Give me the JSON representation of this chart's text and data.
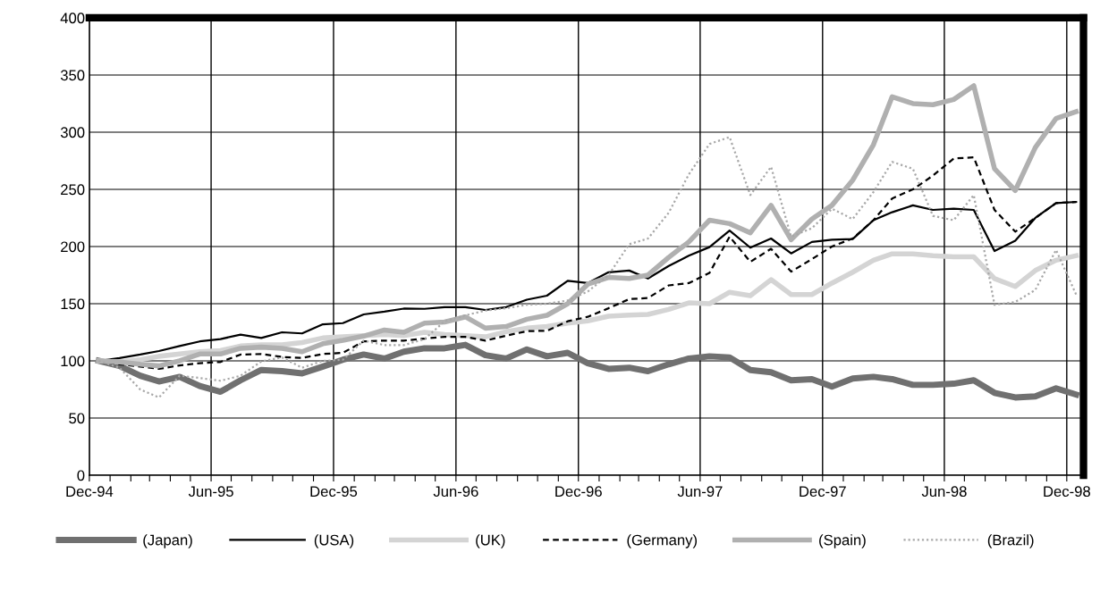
{
  "chart_data": {
    "type": "line",
    "x": [
      "1994-12-15",
      "1995-01-15",
      "1995-02-15",
      "1995-03-15",
      "1995-04-15",
      "1995-05-15",
      "1995-06-15",
      "1995-07-15",
      "1995-08-15",
      "1995-09-15",
      "1995-10-15",
      "1995-11-15",
      "1995-12-15",
      "1996-01-15",
      "1996-02-15",
      "1996-03-15",
      "1996-04-15",
      "1996-05-15",
      "1996-06-15",
      "1996-07-15",
      "1996-08-15",
      "1996-09-15",
      "1996-10-15",
      "1996-11-15",
      "1996-12-15",
      "1997-01-15",
      "1997-02-15",
      "1997-03-15",
      "1997-04-15",
      "1997-05-15",
      "1997-06-15",
      "1997-07-15",
      "1997-08-15",
      "1997-09-15",
      "1997-10-15",
      "1997-11-15",
      "1997-12-15",
      "1998-01-15",
      "1998-02-15",
      "1998-03-15",
      "1998-04-15",
      "1998-05-15",
      "1998-06-15",
      "1998-07-15",
      "1998-08-15",
      "1998-09-15",
      "1998-10-15",
      "1998-11-15",
      "1998-12-15"
    ],
    "series": [
      {
        "name": "(Japan)",
        "color": "#707070",
        "line_style": "solid",
        "values": [
          100,
          95.6,
          87,
          82,
          86,
          78,
          73,
          83,
          92,
          91,
          89,
          95,
          101,
          105.5,
          102,
          108,
          111,
          111,
          114,
          105,
          102,
          110,
          104,
          107,
          98,
          93,
          94,
          91,
          97,
          102,
          104,
          103,
          92,
          90,
          83,
          84,
          77.5,
          84.5,
          86,
          84,
          79,
          79,
          80,
          83,
          72,
          68,
          69,
          76,
          70.5
        ]
      },
      {
        "name": "(USA)",
        "color": "#000000",
        "line_style": "solid",
        "values": [
          100,
          102.5,
          105.5,
          108.6,
          113,
          117,
          119,
          123,
          120,
          125,
          124,
          132,
          133,
          140.6,
          143,
          145.7,
          145.5,
          147,
          147,
          144.5,
          147,
          153.5,
          157,
          170,
          168,
          177.5,
          179,
          172,
          183,
          192,
          199.5,
          214,
          199,
          207,
          194,
          204,
          206,
          206.5,
          223,
          230,
          236,
          232,
          233,
          232,
          196,
          205,
          225,
          238,
          239
        ]
      },
      {
        "name": "(UK)",
        "color": "#d4d4d4",
        "line_style": "solid",
        "values": [
          100,
          99,
          101,
          104,
          106,
          108,
          109,
          113,
          114,
          114,
          116,
          120,
          121,
          122,
          123,
          122,
          125,
          123,
          122,
          121,
          125.5,
          128.6,
          130,
          133,
          135,
          139,
          140,
          140.6,
          145,
          150.7,
          150,
          160,
          157,
          171,
          158,
          158,
          168,
          177.5,
          188,
          193.6,
          193.6,
          192,
          191,
          191,
          172,
          165,
          179,
          188,
          192
        ]
      },
      {
        "name": "(Germany)",
        "color": "#000000",
        "line_style": "dashed",
        "values": [
          100,
          97,
          95,
          93,
          96,
          98,
          99,
          105.5,
          106,
          103.4,
          102.6,
          106,
          107,
          117,
          117.7,
          117.7,
          119.5,
          121,
          121,
          117.7,
          122,
          126,
          126.3,
          134.6,
          138.5,
          146,
          154,
          155,
          166,
          168,
          177,
          208.6,
          186.6,
          198,
          178,
          189,
          200,
          207,
          223,
          242,
          250,
          262,
          277,
          278,
          232,
          213,
          225,
          238,
          239
        ]
      },
      {
        "name": "(Spain)",
        "color": "#b0b0b0",
        "line_style": "solid",
        "values": [
          100,
          99,
          97,
          95.6,
          100,
          106,
          106,
          111,
          112,
          111,
          108,
          115,
          118,
          121.6,
          127,
          125,
          133,
          134,
          138.5,
          128.6,
          130,
          136.4,
          139.8,
          150,
          167,
          173,
          172,
          175,
          190.5,
          204,
          223,
          220,
          212,
          236,
          206,
          224,
          236,
          258,
          289,
          331,
          325,
          324,
          328.6,
          340.6,
          268,
          249,
          286.6,
          312,
          318
        ]
      },
      {
        "name": "(Brazil)",
        "color": "#a8a8a8",
        "line_style": "dotted",
        "values": [
          100,
          94,
          75,
          68,
          87,
          85,
          82.6,
          87,
          99.5,
          103,
          94,
          100,
          101,
          117.7,
          113.8,
          113.8,
          119,
          134.6,
          139.8,
          144,
          146,
          149,
          150,
          152.8,
          160.6,
          175,
          202,
          207,
          229.5,
          263,
          289.7,
          295.7,
          245,
          269.7,
          208.6,
          216,
          233,
          224,
          247.6,
          274,
          268,
          226.8,
          223,
          245,
          149,
          151.5,
          162,
          197,
          158
        ]
      }
    ],
    "xlim": [
      "1994-12-01",
      "1998-12-26"
    ],
    "xticks": [
      {
        "value": "1994-12-01",
        "label": "Dec-94"
      },
      {
        "value": "1995-01-01",
        "label": null
      },
      {
        "value": "1995-02-01",
        "label": null
      },
      {
        "value": "1995-03-01",
        "label": null
      },
      {
        "value": "1995-04-01",
        "label": null
      },
      {
        "value": "1995-05-01",
        "label": null
      },
      {
        "value": "1995-06-01",
        "label": "Jun-95"
      },
      {
        "value": "1995-07-01",
        "label": null
      },
      {
        "value": "1995-08-01",
        "label": null
      },
      {
        "value": "1995-09-01",
        "label": null
      },
      {
        "value": "1995-10-01",
        "label": null
      },
      {
        "value": "1995-11-01",
        "label": null
      },
      {
        "value": "1995-12-01",
        "label": "Dec-95"
      },
      {
        "value": "1996-01-01",
        "label": null
      },
      {
        "value": "1996-02-01",
        "label": null
      },
      {
        "value": "1996-03-01",
        "label": null
      },
      {
        "value": "1996-04-01",
        "label": null
      },
      {
        "value": "1996-05-01",
        "label": null
      },
      {
        "value": "1996-06-01",
        "label": "Jun-96"
      },
      {
        "value": "1996-07-01",
        "label": null
      },
      {
        "value": "1996-08-01",
        "label": null
      },
      {
        "value": "1996-09-01",
        "label": null
      },
      {
        "value": "1996-10-01",
        "label": null
      },
      {
        "value": "1996-11-01",
        "label": null
      },
      {
        "value": "1996-12-01",
        "label": "Dec-96"
      },
      {
        "value": "1997-01-01",
        "label": null
      },
      {
        "value": "1997-02-01",
        "label": null
      },
      {
        "value": "1997-03-01",
        "label": null
      },
      {
        "value": "1997-04-01",
        "label": null
      },
      {
        "value": "1997-05-01",
        "label": null
      },
      {
        "value": "1997-06-01",
        "label": "Jun-97"
      },
      {
        "value": "1997-07-01",
        "label": null
      },
      {
        "value": "1997-08-01",
        "label": null
      },
      {
        "value": "1997-09-01",
        "label": null
      },
      {
        "value": "1997-10-01",
        "label": null
      },
      {
        "value": "1997-11-01",
        "label": null
      },
      {
        "value": "1997-12-01",
        "label": "Dec-97"
      },
      {
        "value": "1998-01-01",
        "label": null
      },
      {
        "value": "1998-02-01",
        "label": null
      },
      {
        "value": "1998-03-01",
        "label": null
      },
      {
        "value": "1998-04-01",
        "label": null
      },
      {
        "value": "1998-05-01",
        "label": null
      },
      {
        "value": "1998-06-01",
        "label": "Jun-98"
      },
      {
        "value": "1998-07-01",
        "label": null
      },
      {
        "value": "1998-08-01",
        "label": null
      },
      {
        "value": "1998-09-01",
        "label": null
      },
      {
        "value": "1998-10-01",
        "label": null
      },
      {
        "value": "1998-11-01",
        "label": null
      },
      {
        "value": "1998-12-01",
        "label": "Dec-98"
      }
    ],
    "ylim": [
      0,
      400
    ],
    "yticks": [
      0,
      50,
      100,
      150,
      200,
      250,
      300,
      350,
      400
    ],
    "grid": true,
    "legend": "bottom",
    "marker": "none"
  }
}
